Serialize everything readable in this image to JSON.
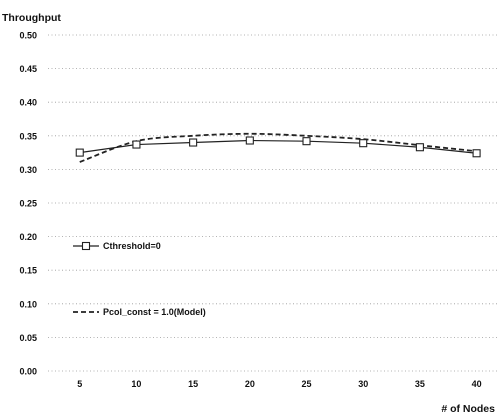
{
  "chart_data": {
    "type": "line",
    "title": "",
    "ylabel": "Throughput",
    "xlabel": "# of Nodes",
    "x": [
      5,
      10,
      15,
      20,
      25,
      30,
      35,
      40
    ],
    "x_tick_labels": [
      "5",
      "10",
      "15",
      "20",
      "25",
      "30",
      "35",
      "40"
    ],
    "ylim": [
      0,
      0.5
    ],
    "y_ticks": [
      0,
      0.05,
      0.1,
      0.15,
      0.2,
      0.25,
      0.3,
      0.35,
      0.4,
      0.45,
      0.5
    ],
    "y_tick_labels": [
      "0.00",
      "0.05",
      "0.10",
      "0.15",
      "0.20",
      "0.25",
      "0.30",
      "0.35",
      "0.40",
      "0.45",
      "0.50"
    ],
    "grid": true,
    "legend_placement": "left",
    "series": [
      {
        "name": "Cthreshold=0",
        "style": "solid line with square markers",
        "color": "#222222",
        "values": [
          0.325,
          0.337,
          0.34,
          0.343,
          0.342,
          0.339,
          0.333,
          0.324
        ]
      },
      {
        "name": "Pcol_const = 1.0(Model)",
        "style": "dashed line",
        "color": "#222222",
        "values": [
          0.311,
          0.342,
          0.35,
          0.353,
          0.35,
          0.345,
          0.336,
          0.327
        ]
      }
    ]
  }
}
